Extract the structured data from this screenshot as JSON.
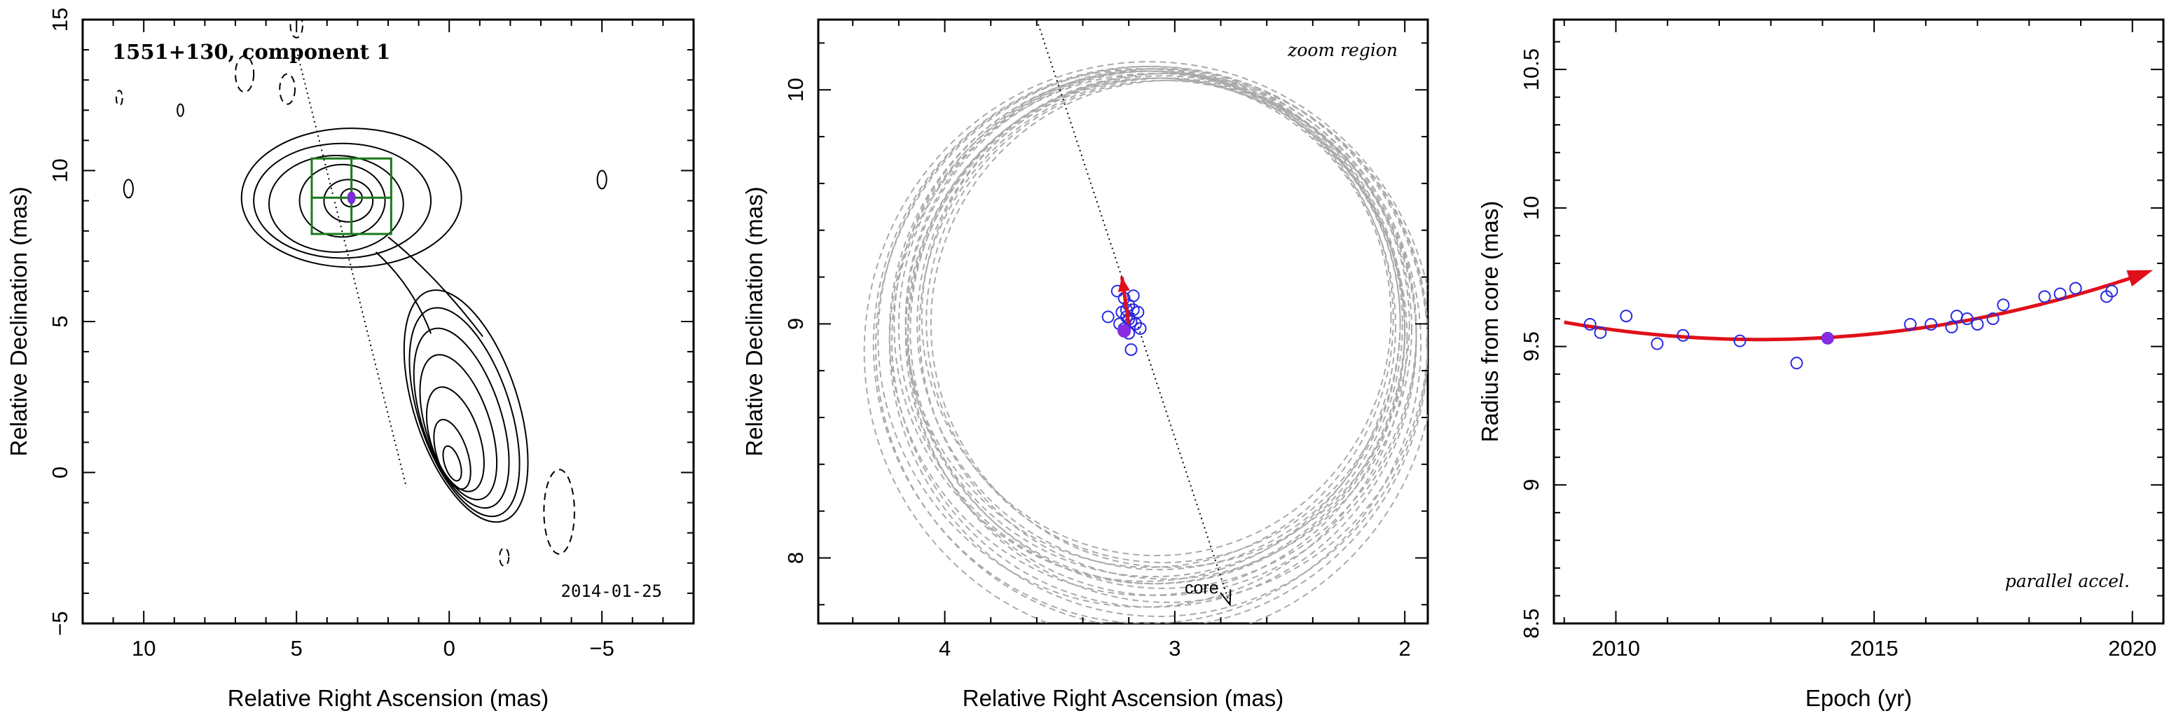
{
  "chart_data": [
    {
      "type": "contour",
      "title": "1551+130, component 1",
      "xlabel": "Relative Right Ascension (mas)",
      "ylabel": "Relative Declination (mas)",
      "xlim": [
        12,
        -8
      ],
      "ylim": [
        -5,
        15
      ],
      "xticks": [
        10,
        5,
        0,
        -5
      ],
      "xtick_labels": [
        "10",
        "5",
        "0",
        "−5"
      ],
      "yticks": [
        -5,
        0,
        5,
        10,
        15
      ],
      "ytick_labels": [
        "−5",
        "0",
        "5",
        "10",
        "15"
      ],
      "annotation": "2014-01-25",
      "component_position": [
        3.2,
        9.1
      ],
      "zoom_box": {
        "x": [
          1.9,
          4.5
        ],
        "y": [
          7.9,
          10.4
        ]
      },
      "trajectory_line": [
        [
          5.0,
          14.0
        ],
        [
          1.4,
          -0.5
        ]
      ],
      "colors": {
        "contour": "#000000",
        "zoom_box": "#1a7a1a",
        "component": "#7a2fd0"
      }
    },
    {
      "type": "scatter",
      "xlabel": "Relative Right Ascension (mas)",
      "ylabel": "Relative Declination (mas)",
      "xlim": [
        4.55,
        1.9
      ],
      "ylim": [
        7.72,
        10.3
      ],
      "xticks": [
        4,
        3,
        2
      ],
      "xtick_labels": [
        "4",
        "3",
        "2"
      ],
      "yticks": [
        8,
        9,
        10
      ],
      "ytick_labels": [
        "8",
        "9",
        "10"
      ],
      "annotation_top": "zoom region",
      "annotation_core": "core",
      "core_arrow": [
        [
          3.6,
          10.3
        ],
        [
          2.76,
          7.8
        ]
      ],
      "points": [
        [
          3.25,
          9.14
        ],
        [
          3.22,
          9.11
        ],
        [
          3.18,
          9.12
        ],
        [
          3.2,
          9.08
        ],
        [
          3.18,
          9.06
        ],
        [
          3.16,
          9.05
        ],
        [
          3.21,
          9.03
        ],
        [
          3.19,
          9.01
        ],
        [
          3.17,
          9.0
        ],
        [
          3.15,
          8.98
        ],
        [
          3.22,
          8.98
        ],
        [
          3.2,
          8.96
        ],
        [
          3.29,
          9.03
        ],
        [
          3.19,
          8.89
        ],
        [
          3.23,
          9.05
        ],
        [
          3.21,
          9.06
        ],
        [
          3.24,
          9.0
        ],
        [
          3.2,
          9.02
        ]
      ],
      "highlight_point": [
        3.22,
        8.97
      ],
      "motion_vector": [
        [
          3.2,
          9.0
        ],
        [
          3.23,
          9.2
        ]
      ],
      "circles": [
        {
          "cx": 3.07,
          "cy": 9.0,
          "r": 1.05
        },
        {
          "cx": 3.08,
          "cy": 8.97,
          "r": 1.08
        },
        {
          "cx": 3.1,
          "cy": 8.99,
          "r": 1.1
        },
        {
          "cx": 3.05,
          "cy": 9.01,
          "r": 1.03
        },
        {
          "cx": 3.12,
          "cy": 8.96,
          "r": 1.12
        },
        {
          "cx": 3.09,
          "cy": 8.93,
          "r": 1.14
        },
        {
          "cx": 3.04,
          "cy": 8.98,
          "r": 1.07
        },
        {
          "cx": 3.11,
          "cy": 9.02,
          "r": 1.06
        },
        {
          "cx": 3.06,
          "cy": 8.95,
          "r": 1.11
        },
        {
          "cx": 3.13,
          "cy": 8.99,
          "r": 1.09
        },
        {
          "cx": 3.1,
          "cy": 8.9,
          "r": 1.2
        },
        {
          "cx": 3.02,
          "cy": 9.0,
          "r": 1.04
        },
        {
          "cx": 3.08,
          "cy": 9.03,
          "r": 1.02
        },
        {
          "cx": 3.14,
          "cy": 8.94,
          "r": 1.15
        },
        {
          "cx": 3.07,
          "cy": 8.92,
          "r": 1.17
        },
        {
          "cx": 3.11,
          "cy": 8.88,
          "r": 1.24
        },
        {
          "cx": 3.05,
          "cy": 8.97,
          "r": 1.1
        },
        {
          "cx": 3.09,
          "cy": 9.0,
          "r": 1.08
        },
        {
          "cx": 3.03,
          "cy": 8.94,
          "r": 1.13
        },
        {
          "cx": 3.12,
          "cy": 8.91,
          "r": 1.19
        }
      ],
      "colors": {
        "points": "#2a2ae0",
        "highlight": "#8a2be2",
        "vector": "#e0101a",
        "circles": "#aaaaaa"
      }
    },
    {
      "type": "scatter",
      "xlabel": "Epoch (yr)",
      "ylabel": "Radius from core (mas)",
      "xlim": [
        2008.8,
        2020.6
      ],
      "ylim": [
        8.5,
        10.68
      ],
      "xticks": [
        2010,
        2015,
        2020
      ],
      "xtick_labels": [
        "2010",
        "2015",
        "2020"
      ],
      "yticks": [
        8.5,
        9,
        9.5,
        10,
        10.5
      ],
      "ytick_labels": [
        "8.5",
        "9",
        "9.5",
        "10",
        "10.5"
      ],
      "annotation": "parallel accel.",
      "x": [
        2009.5,
        2009.7,
        2010.2,
        2010.8,
        2011.3,
        2012.4,
        2013.5,
        2014.1,
        2015.7,
        2016.1,
        2016.5,
        2016.6,
        2016.8,
        2017.0,
        2017.3,
        2017.5,
        2018.3,
        2018.6,
        2018.9,
        2019.5,
        2019.6
      ],
      "y": [
        9.58,
        9.55,
        9.61,
        9.51,
        9.54,
        9.52,
        9.44,
        9.53,
        9.58,
        9.58,
        9.57,
        9.61,
        9.6,
        9.58,
        9.6,
        9.65,
        9.68,
        9.69,
        9.71,
        9.68,
        9.7
      ],
      "highlight_point": [
        2014.1,
        9.53
      ],
      "fit_curve": {
        "a": 9.525,
        "b": 0.0,
        "c": 0.00432,
        "x0": 2012.8,
        "x_range": [
          2009.0,
          2020.1
        ]
      },
      "colors": {
        "points": "#2a2ae0",
        "highlight": "#8a2be2",
        "fit": "#e0101a"
      }
    }
  ]
}
